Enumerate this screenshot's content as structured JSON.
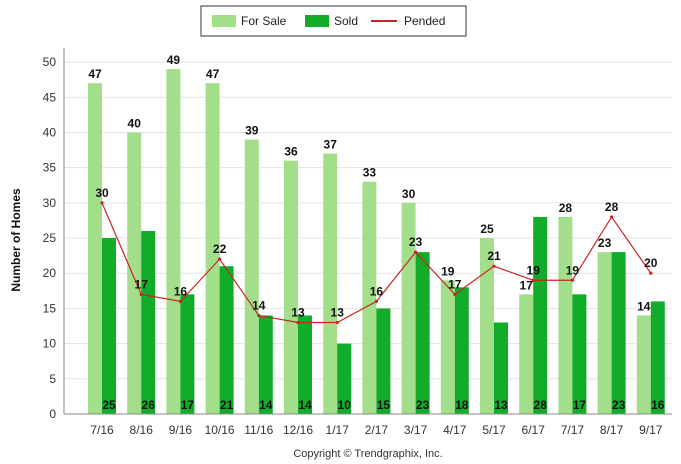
{
  "chart_data": {
    "type": "bar",
    "categories": [
      "7/16",
      "8/16",
      "9/16",
      "10/16",
      "11/16",
      "12/16",
      "1/17",
      "2/17",
      "3/17",
      "4/17",
      "5/17",
      "6/17",
      "7/17",
      "8/17",
      "9/17"
    ],
    "series": [
      {
        "name": "For Sale",
        "type": "bar",
        "color": "#a3df8a",
        "values": [
          47,
          40,
          49,
          47,
          39,
          36,
          37,
          33,
          30,
          19,
          25,
          17,
          28,
          23,
          14
        ]
      },
      {
        "name": "Sold",
        "type": "bar",
        "color": "#11ad2a",
        "values": [
          25,
          26,
          17,
          21,
          14,
          14,
          10,
          15,
          23,
          18,
          13,
          28,
          17,
          23,
          16
        ]
      },
      {
        "name": "Pended",
        "type": "line",
        "color": "#cc2222",
        "values": [
          30,
          17,
          16,
          22,
          14,
          13,
          13,
          16,
          23,
          17,
          21,
          19,
          19,
          28,
          20
        ]
      }
    ],
    "ylabel": "Number of Homes",
    "yticks": [
      0,
      5,
      10,
      15,
      20,
      25,
      30,
      35,
      40,
      45,
      50
    ],
    "ylim": [
      0,
      52
    ],
    "grid": true,
    "legend": "top-center"
  },
  "footer": {
    "copyright": "Copyright © Trendgraphix, Inc."
  }
}
